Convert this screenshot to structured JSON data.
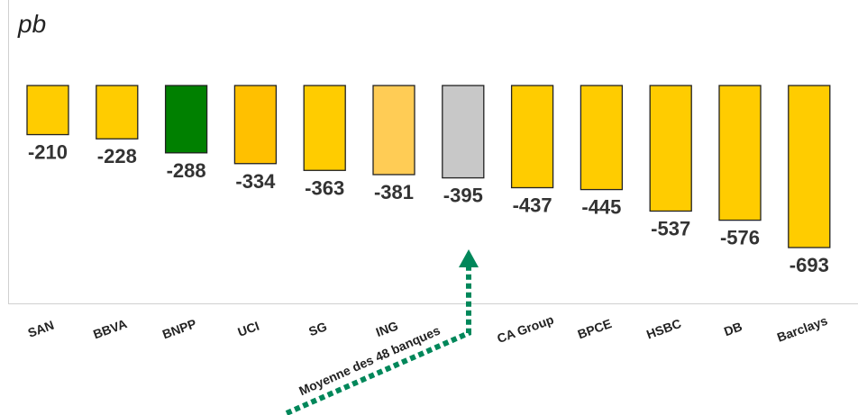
{
  "chart_data": {
    "type": "bar",
    "unit_label": "pb",
    "categories": [
      "SAN",
      "BBVA",
      "BNPP",
      "UCI",
      "SG",
      "ING",
      "Moyenne des 48 banques",
      "CA Group",
      "BPCE",
      "HSBC",
      "DB",
      "Barclays"
    ],
    "values": [
      -210,
      -228,
      -288,
      -334,
      -363,
      -381,
      -395,
      -437,
      -445,
      -537,
      -576,
      -693
    ],
    "value_labels": [
      "-210",
      "-228",
      "-288",
      "-334",
      "-363",
      "-381",
      "-395",
      "-437",
      "-445",
      "-537",
      "-576",
      "-693"
    ],
    "bar_colors": [
      "#ffcc00",
      "#ffcc00",
      "#008000",
      "#ffc000",
      "#ffcc00",
      "#ffcc55",
      "#c8c8c8",
      "#ffcc00",
      "#ffcc00",
      "#ffcc00",
      "#ffcc00",
      "#ffcc00"
    ],
    "annotation": {
      "text": "Moyenne des 48 banques",
      "points_to": "Moyenne des 48 banques",
      "arrow_color": "#00875a",
      "style": "dotted arrow"
    },
    "category_labels_shown": [
      "SAN",
      "BBVA",
      "BNPP",
      "UCI",
      "SG",
      "ING",
      "",
      "CA Group",
      "BPCE",
      "HSBC",
      "DB",
      "Barclays"
    ],
    "legend": "none",
    "grid": false
  }
}
